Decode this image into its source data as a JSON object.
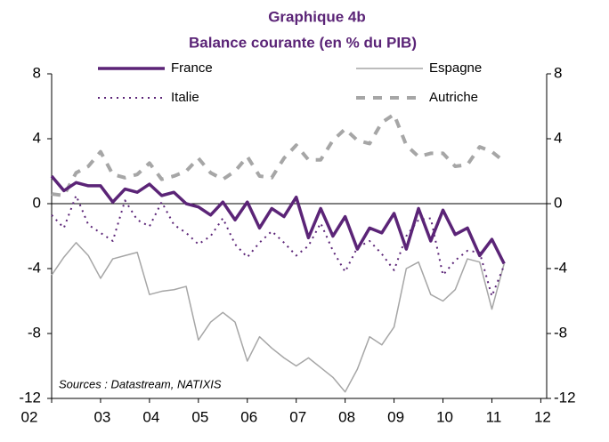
{
  "chart_data": {
    "type": "line",
    "title": "Graphique 4b",
    "subtitle": "Balance courante (en % du PIB)",
    "annotation": "Sources : Datastream, NATIXIS",
    "x": [
      2002,
      2002.25,
      2002.5,
      2002.75,
      2003,
      2003.25,
      2003.5,
      2003.75,
      2004,
      2004.25,
      2004.5,
      2004.75,
      2005,
      2005.25,
      2005.5,
      2005.75,
      2006,
      2006.25,
      2006.5,
      2006.75,
      2007,
      2007.25,
      2007.5,
      2007.75,
      2008,
      2008.25,
      2008.5,
      2008.75,
      2009,
      2009.25,
      2009.5,
      2009.75,
      2010,
      2010.25,
      2010.5,
      2010.75,
      2011,
      2011.25
    ],
    "series": [
      {
        "name": "France",
        "color": "#5b2477",
        "style": "solid",
        "width": 3.5,
        "values": [
          1.7,
          0.8,
          1.3,
          1.1,
          1.1,
          0.1,
          0.9,
          0.7,
          1.2,
          0.5,
          0.7,
          0.0,
          -0.2,
          -0.7,
          0.1,
          -1.0,
          0.1,
          -1.5,
          -0.3,
          -0.8,
          0.4,
          -2.1,
          -0.3,
          -2.0,
          -0.8,
          -2.8,
          -1.5,
          -1.8,
          -0.6,
          -2.8,
          -0.3,
          -2.3,
          -0.4,
          -1.9,
          -1.5,
          -3.2,
          -2.2,
          -3.7
        ]
      },
      {
        "name": "Espagne",
        "color": "#a6a6a6",
        "style": "solid",
        "width": 1.5,
        "values": [
          -4.4,
          -3.3,
          -2.4,
          -3.2,
          -4.6,
          -3.4,
          -3.2,
          -3.0,
          -5.6,
          -5.4,
          -5.3,
          -5.1,
          -8.4,
          -7.3,
          -6.7,
          -7.3,
          -9.7,
          -8.2,
          -8.9,
          -9.5,
          -10.0,
          -9.5,
          -10.1,
          -10.7,
          -11.6,
          -10.2,
          -8.2,
          -8.7,
          -7.6,
          -4.0,
          -3.6,
          -5.6,
          -6.0,
          -5.3,
          -3.4,
          -3.6,
          -6.5,
          -3.7
        ]
      },
      {
        "name": "Italie",
        "color": "#5b2477",
        "style": "dotted",
        "width": 2,
        "values": [
          -0.7,
          -1.5,
          0.5,
          -1.3,
          -1.8,
          -2.3,
          0.2,
          -1.0,
          -1.4,
          0.1,
          -1.3,
          -1.8,
          -2.5,
          -2.0,
          -0.9,
          -2.5,
          -3.3,
          -2.4,
          -1.7,
          -2.4,
          -3.2,
          -2.6,
          -1.2,
          -2.9,
          -4.2,
          -2.7,
          -2.3,
          -3.1,
          -4.1,
          -2.0,
          -1.0,
          -0.9,
          -4.4,
          -3.5,
          -2.9,
          -3.0,
          -5.7,
          -3.8
        ]
      },
      {
        "name": "Autriche",
        "color": "#a6a6a6",
        "style": "dashed",
        "width": 4,
        "values": [
          0.6,
          0.5,
          1.9,
          2.3,
          3.2,
          1.8,
          1.6,
          1.8,
          2.5,
          1.5,
          1.7,
          2.0,
          2.8,
          1.9,
          1.5,
          2.0,
          2.9,
          1.7,
          1.6,
          2.8,
          3.6,
          2.7,
          2.7,
          3.9,
          4.6,
          3.9,
          3.7,
          5.0,
          5.5,
          3.6,
          2.9,
          3.1,
          3.1,
          2.3,
          2.4,
          3.5,
          3.2,
          2.6
        ]
      }
    ],
    "xlim": [
      2002,
      2012.12
    ],
    "xticks": [
      {
        "value": 2002,
        "label": "02"
      },
      {
        "value": 2003,
        "label": "03"
      },
      {
        "value": 2004,
        "label": "04"
      },
      {
        "value": 2005,
        "label": "05"
      },
      {
        "value": 2006,
        "label": "06"
      },
      {
        "value": 2007,
        "label": "07"
      },
      {
        "value": 2008,
        "label": "08"
      },
      {
        "value": 2009,
        "label": "09"
      },
      {
        "value": 2010,
        "label": "10"
      },
      {
        "value": 2011,
        "label": "11"
      },
      {
        "value": 2012,
        "label": "12"
      }
    ],
    "ylim": [
      -12,
      8
    ],
    "yticks": [
      -12,
      -8,
      -4,
      0,
      4,
      8
    ],
    "y2lim": [
      -12,
      8
    ],
    "y2ticks": [
      -12,
      -8,
      -4,
      0,
      4,
      8
    ],
    "grid": false,
    "legend": "top"
  }
}
